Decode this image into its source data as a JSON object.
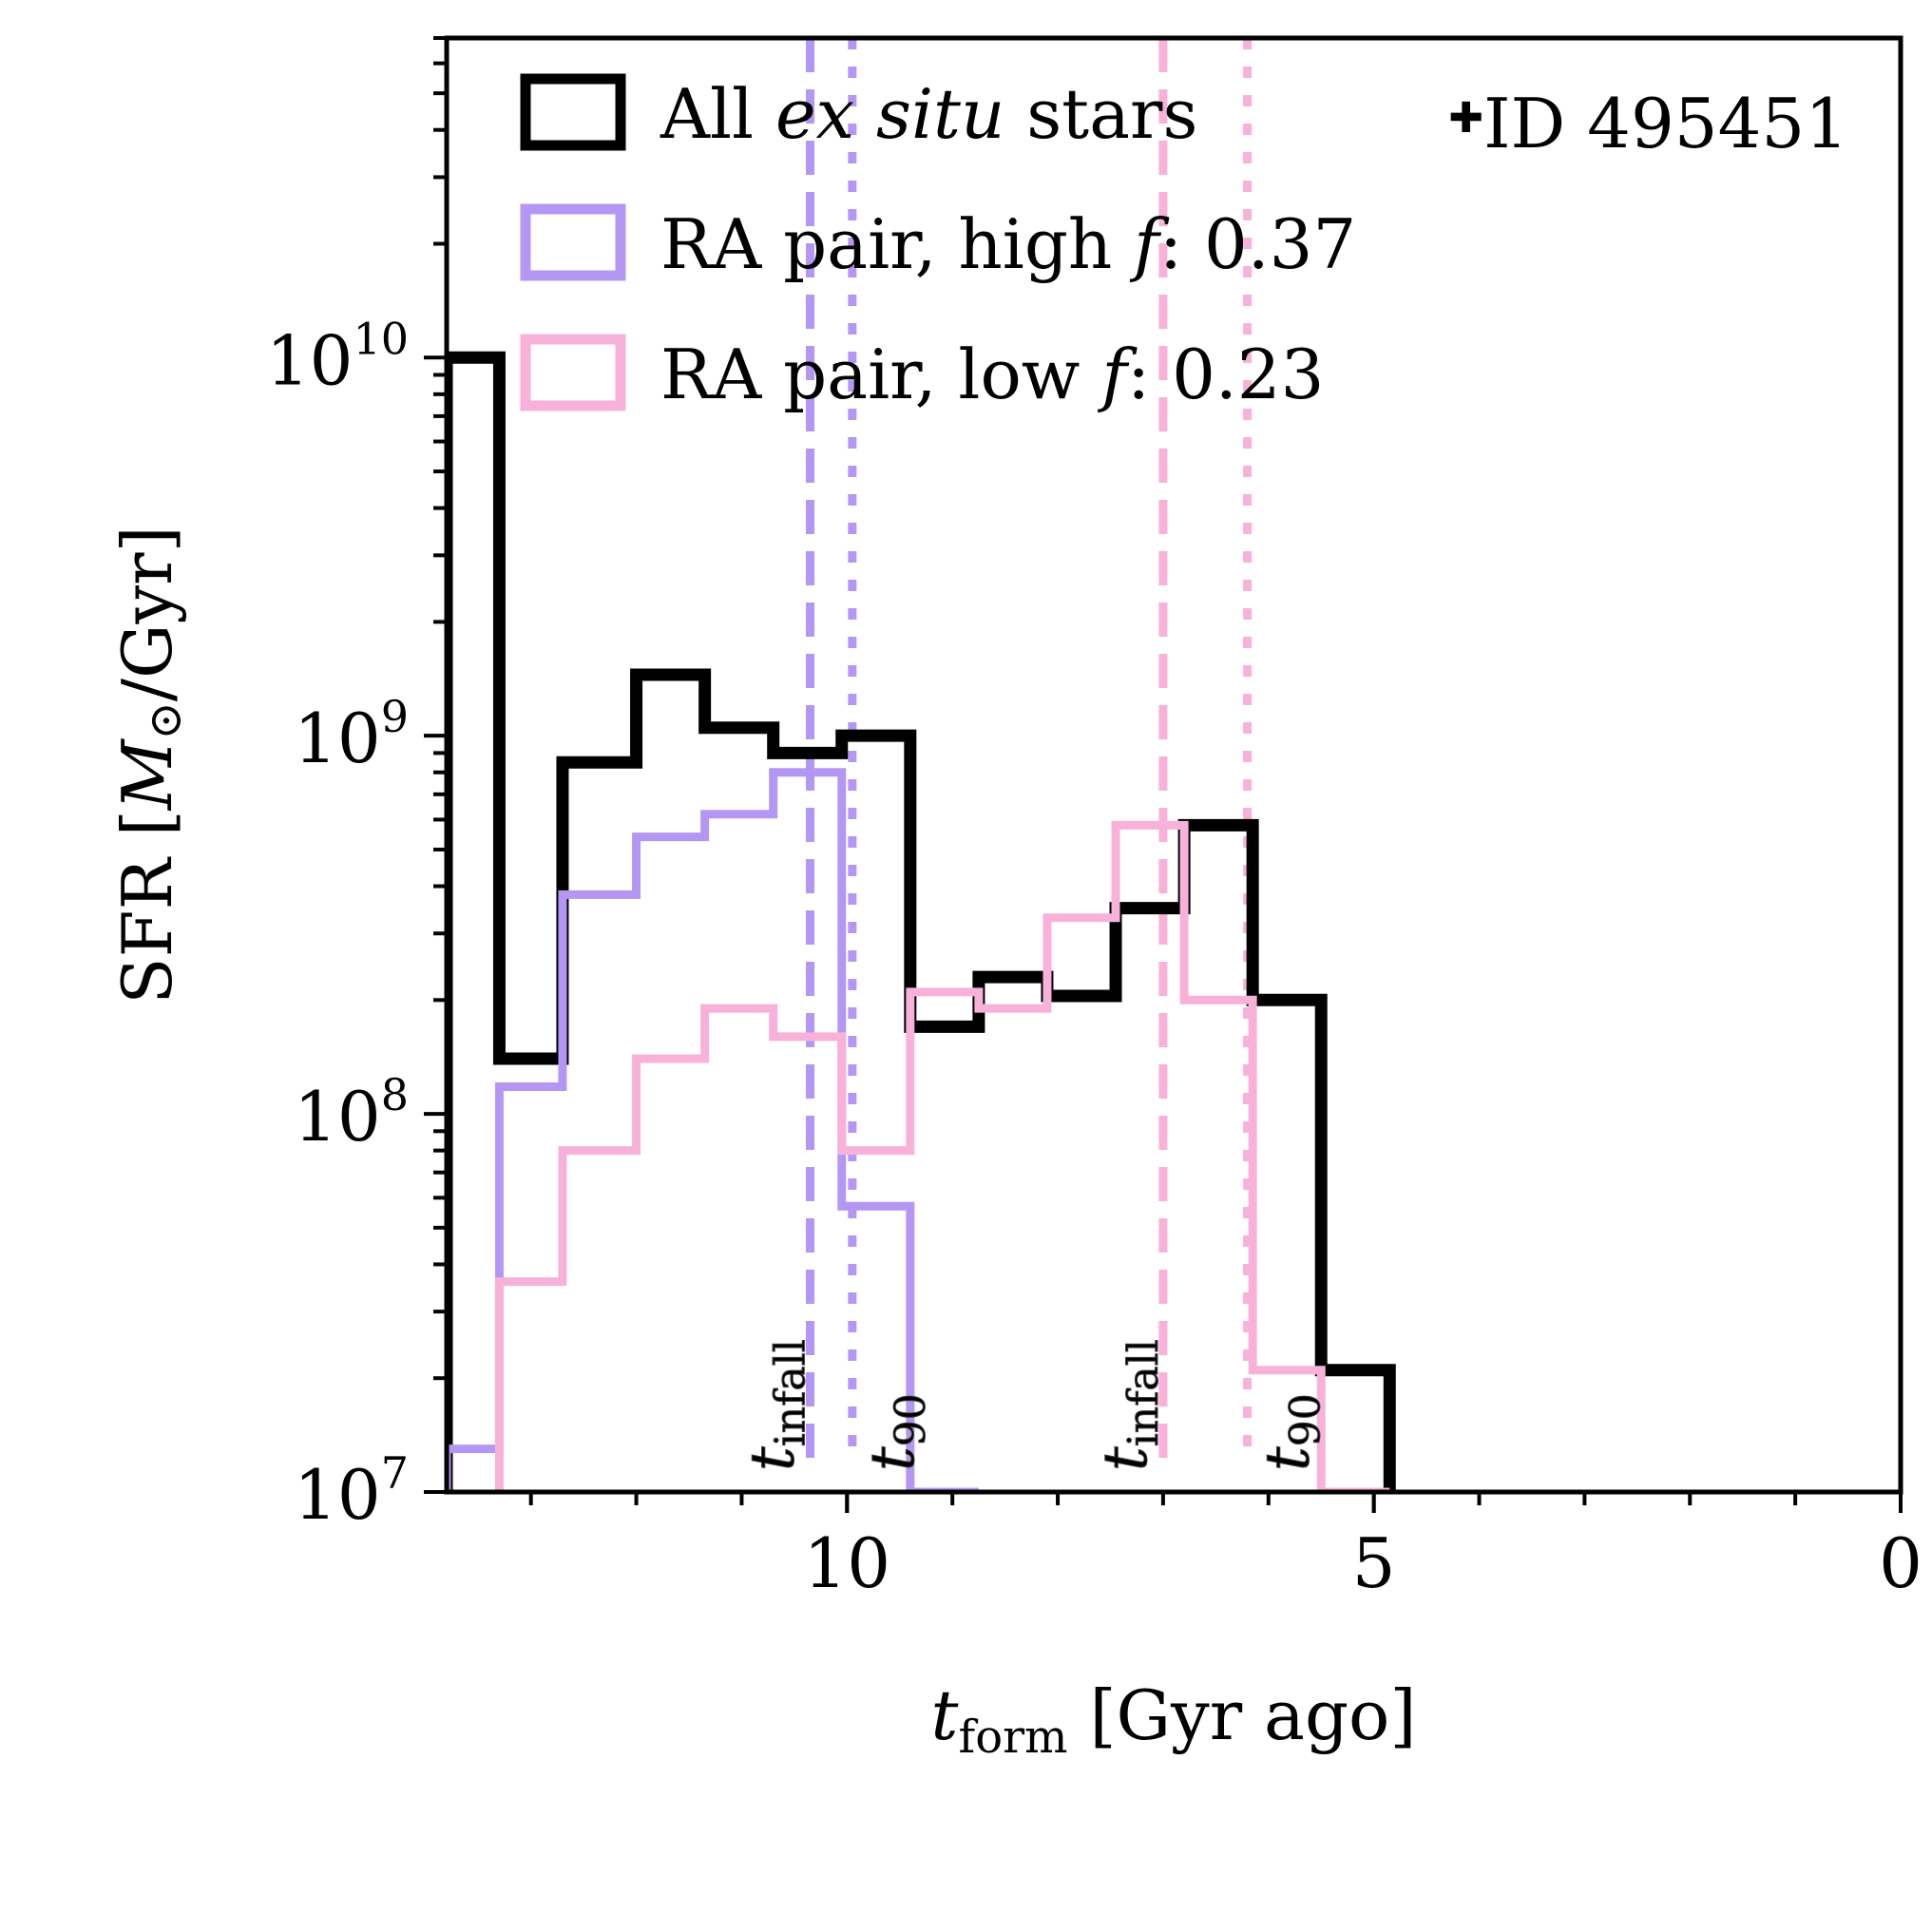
{
  "chart_data": {
    "type": "histogram-step",
    "scale": {
      "x": "linear",
      "y": "log"
    },
    "xlim": [
      13.8,
      0
    ],
    "ylim": [
      10000000,
      70000000000
    ],
    "x_ticks": [
      10,
      5,
      0
    ],
    "x_tick_labels": [
      "10",
      "5",
      "0"
    ],
    "y_ticks": [
      {
        "value": 10000000,
        "base": "10",
        "exp": "7"
      },
      {
        "value": 100000000,
        "base": "10",
        "exp": "8"
      },
      {
        "value": 1000000000,
        "base": "10",
        "exp": "9"
      },
      {
        "value": 10000000000,
        "base": "10",
        "exp": "10"
      }
    ],
    "xlabel": {
      "var": "t",
      "sub": "form",
      "rest": " [Gyr ago]"
    },
    "ylabel": {
      "pre": "SFR [",
      "var": "M",
      "sym": "⊙",
      "post": "/Gyr]"
    },
    "annotation": {
      "marker": "✚",
      "text": "ID 495451"
    },
    "legend": [
      {
        "pre": "All ",
        "ital": "ex situ",
        "post": " stars",
        "color": "#000000"
      },
      {
        "pre": "RA pair, high ",
        "ital": "f",
        "post": ": 0.37",
        "color": "#b497f5"
      },
      {
        "pre": "RA pair, low ",
        "ital": "f",
        "post": ": 0.23",
        "color": "#f8b2d9"
      }
    ],
    "series": [
      {
        "name": "All ex situ stars",
        "color": "#000000",
        "edges": [
          13.8,
          13.3,
          12.7,
          12.0,
          11.35,
          10.7,
          10.05,
          9.4,
          8.75,
          8.1,
          7.45,
          6.8,
          6.15,
          5.5,
          4.85
        ],
        "values": [
          10000000000,
          140000000,
          850000000,
          1450000000,
          1050000000,
          900000000,
          1000000000,
          170000000,
          230000000,
          205000000,
          350000000,
          580000000,
          200000000,
          21000000
        ]
      },
      {
        "name": "RA pair, high f: 0.37",
        "color": "#b497f5",
        "edges": [
          13.8,
          13.3,
          12.7,
          12.0,
          11.35,
          10.7,
          10.05,
          9.4,
          8.75
        ],
        "values": [
          13000000,
          118000000,
          380000000,
          540000000,
          620000000,
          800000000,
          57000000,
          10000000
        ]
      },
      {
        "name": "RA pair, low f: 0.23",
        "color": "#f8b2d9",
        "edges": [
          13.3,
          12.7,
          12.0,
          11.35,
          10.7,
          10.05,
          9.4,
          8.75,
          8.1,
          7.45,
          6.8,
          6.15,
          5.5,
          4.85
        ],
        "values": [
          36000000,
          80000000,
          140000000,
          190000000,
          160000000,
          80000000,
          210000000,
          190000000,
          330000000,
          580000000,
          200000000,
          21000000,
          10000000
        ]
      }
    ],
    "vlines": [
      {
        "x": 10.35,
        "style": "dashed",
        "color": "#b497f5",
        "var": "t",
        "sub": "infall"
      },
      {
        "x": 9.95,
        "style": "dotted",
        "color": "#b497f5",
        "var": "t",
        "sub": "90"
      },
      {
        "x": 7.0,
        "style": "dashed",
        "color": "#f8b2d9",
        "var": "t",
        "sub": "infall"
      },
      {
        "x": 6.2,
        "style": "dotted",
        "color": "#f8b2d9",
        "var": "t",
        "sub": "90"
      }
    ]
  }
}
